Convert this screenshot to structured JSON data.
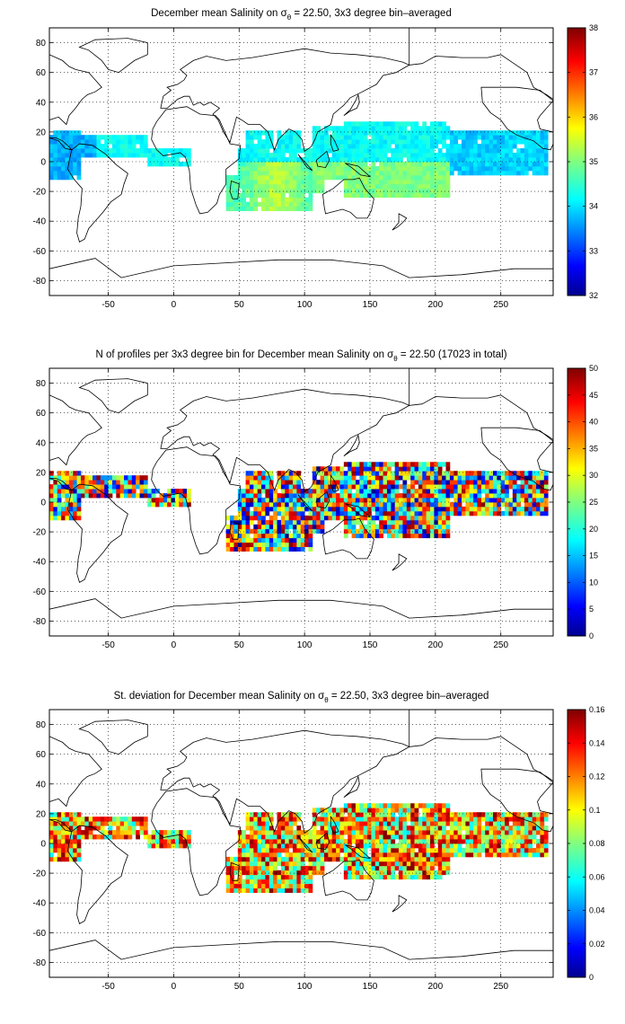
{
  "panels": [
    {
      "title_main": "December mean Salinity on σ",
      "title_sub": "θ",
      "title_tail": " = 22.50, 3x3 degree bin–averaged",
      "xticks": [
        -50,
        0,
        50,
        100,
        150,
        200,
        250
      ],
      "yticks": [
        80,
        60,
        40,
        20,
        0,
        -20,
        -40,
        -60,
        -80
      ],
      "colorbar_ticks": [
        "38",
        "37",
        "36",
        "35",
        "34",
        "33",
        "32"
      ],
      "colorbar_range": [
        32,
        38
      ]
    },
    {
      "title_main": "N of profiles per 3x3 degree bin for December mean Salinity on σ",
      "title_sub": "θ",
      "title_tail": " = 22.50 (17023 in total)",
      "xticks": [
        -50,
        0,
        50,
        100,
        150,
        200,
        250
      ],
      "yticks": [
        80,
        60,
        40,
        20,
        0,
        -20,
        -40,
        -60,
        -80
      ],
      "colorbar_ticks": [
        "50",
        "45",
        "40",
        "35",
        "30",
        "25",
        "20",
        "15",
        "10",
        "5",
        "0"
      ],
      "colorbar_range": [
        0,
        50
      ]
    },
    {
      "title_main": "St. deviation for December mean Salinity on σ",
      "title_sub": "θ",
      "title_tail": " = 22.50, 3x3 degree bin–averaged",
      "xticks": [
        -50,
        0,
        50,
        100,
        150,
        200,
        250
      ],
      "yticks": [
        80,
        60,
        40,
        20,
        0,
        -20,
        -40,
        -60,
        -80
      ],
      "colorbar_ticks": [
        "0.16",
        "0.14",
        "0.12",
        "0.1",
        "0.08",
        "0.06",
        "0.04",
        "0.02",
        "0"
      ],
      "colorbar_range": [
        0,
        0.16
      ]
    }
  ],
  "map": {
    "lon_range": [
      -95,
      290
    ],
    "lat_range": [
      -90,
      90
    ],
    "colormap": "jet",
    "grid": "dotted",
    "coastlines": "black"
  }
}
